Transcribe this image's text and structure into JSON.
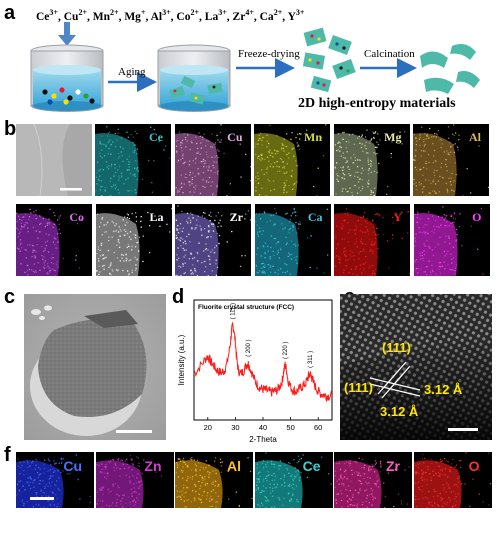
{
  "panels": {
    "a": "a",
    "b": "b",
    "c": "c",
    "d": "d",
    "e": "e",
    "f": "f"
  },
  "panel_a": {
    "ions": [
      "Ce",
      "Cu",
      "Mn",
      "Mg",
      "Al",
      "Co",
      "La",
      "Zr",
      "Ca",
      "Y"
    ],
    "charges": [
      "3+",
      "2+",
      "2+",
      "+",
      "3+",
      "2+",
      "3+",
      "4+",
      "2+",
      "3+"
    ],
    "step1": "Aging",
    "step2": "Freeze-drying",
    "step3": "Calcination",
    "result": "2D high-entropy materials"
  },
  "panel_b": {
    "row1": [
      {
        "el": "Ce",
        "color": "#3fc6c8",
        "glow": "#1a8a8c"
      },
      {
        "el": "Cu",
        "color": "#e6a6e0",
        "glow": "#9a5a96"
      },
      {
        "el": "Mn",
        "color": "#d6dc3a",
        "glow": "#8a8e1a"
      },
      {
        "el": "Mg",
        "color": "#e9ebb0",
        "glow": "#7e8a6a"
      },
      {
        "el": "Al",
        "color": "#e0b860",
        "glow": "#8c6a2a"
      }
    ],
    "row2": [
      {
        "el": "Co",
        "color": "#d070e0",
        "glow": "#8a2ab0"
      },
      {
        "el": "La",
        "color": "#ffffff",
        "glow": "#a0a0a0"
      },
      {
        "el": "Zr",
        "color": "#ffffff",
        "glow": "#6a5ab0"
      },
      {
        "el": "Ca",
        "color": "#40c8e0",
        "glow": "#1a8aa0"
      },
      {
        "el": "Y",
        "color": "#ff2020",
        "glow": "#c01010"
      },
      {
        "el": "O",
        "color": "#ff40ff",
        "glow": "#c020c0"
      }
    ]
  },
  "panel_d": {
    "title": "Fluorite crystal structure (FCC)",
    "xlabel": "2-Theta",
    "ylabel": "Intensity (a.u.)",
    "peaks": [
      "( 111 )",
      "( 200 )",
      "( 220 )",
      "( 311 )"
    ]
  },
  "panel_e": {
    "plane1": "(111)",
    "plane2": "(111)",
    "d1": "3.12 Å",
    "d2": "3.12 Å"
  },
  "panel_f": [
    {
      "el": "Cu",
      "color": "#4a70ff",
      "glow": "#1f2fd0"
    },
    {
      "el": "Zn",
      "color": "#d040d0",
      "glow": "#9a20a0"
    },
    {
      "el": "Al",
      "color": "#ffc030",
      "glow": "#c08810"
    },
    {
      "el": "Ce",
      "color": "#40d0d0",
      "glow": "#18a0a0"
    },
    {
      "el": "Zr",
      "color": "#ff60c0",
      "glow": "#c02080"
    },
    {
      "el": "O",
      "color": "#ff3030",
      "glow": "#d01818"
    }
  ],
  "chart_data": {
    "type": "line",
    "title": "Fluorite crystal structure (FCC)",
    "xlabel": "2-Theta",
    "ylabel": "Intensity (a.u.)",
    "xlim": [
      15,
      65
    ],
    "xticks": [
      20,
      30,
      40,
      50,
      60
    ],
    "series": [
      {
        "x": [
          15,
          17,
          19,
          20,
          21,
          22,
          23,
          24,
          25,
          26,
          27,
          28,
          28.5,
          29,
          29.5,
          30,
          30.5,
          31,
          32,
          33,
          34,
          34.5,
          35,
          36,
          37,
          38,
          39,
          40,
          41,
          42,
          43,
          44,
          45,
          46,
          47,
          47.5,
          48,
          48.5,
          49,
          50,
          51,
          52,
          53,
          54,
          55,
          56,
          56.5,
          57,
          57.5,
          58,
          59,
          60,
          61,
          62,
          63,
          64,
          65
        ],
        "values": [
          0.42,
          0.48,
          0.55,
          0.58,
          0.53,
          0.5,
          0.46,
          0.44,
          0.43,
          0.45,
          0.52,
          0.66,
          0.78,
          0.86,
          0.82,
          0.7,
          0.55,
          0.46,
          0.42,
          0.45,
          0.5,
          0.52,
          0.49,
          0.43,
          0.36,
          0.32,
          0.29,
          0.28,
          0.27,
          0.26,
          0.25,
          0.26,
          0.27,
          0.3,
          0.36,
          0.44,
          0.5,
          0.46,
          0.37,
          0.3,
          0.27,
          0.26,
          0.28,
          0.3,
          0.32,
          0.36,
          0.4,
          0.42,
          0.4,
          0.36,
          0.3,
          0.26,
          0.24,
          0.23,
          0.22,
          0.22,
          0.21
        ]
      }
    ],
    "peak_labels": [
      {
        "x": 29,
        "label": "( 111 )"
      },
      {
        "x": 34.5,
        "label": "( 200 )"
      },
      {
        "x": 48,
        "label": "( 220 )"
      },
      {
        "x": 57,
        "label": "( 311 )"
      }
    ]
  }
}
